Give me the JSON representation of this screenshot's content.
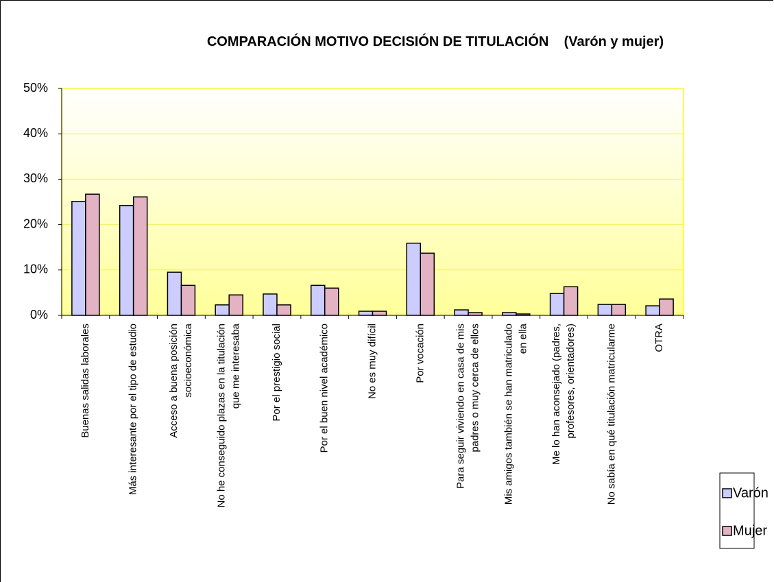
{
  "chart_data": {
    "type": "bar",
    "title": "COMPARACIÓN MOTIVO DECISIÓN DE TITULACIÓN    (Varón y mujer)",
    "categories": [
      "Buenas salidas laborales",
      "Más interesante por el tipo de estudio",
      "Acceso a buena posición\nsocioeconómica",
      "No he conseguido plazas en la titulación\nque me interesaba",
      "Por el prestigio social",
      "Por el buen nivel académico",
      "No es muy difícil",
      "Por vocación",
      "Para seguir viviendo en casa de mis\npadres o muy cerca de ellos",
      "Mis amigos también se han matriculado\nen ella",
      "Me lo han aconsejado (padres,\nprofesores, orientadores)",
      "No sabía en qué titulación matricularme",
      "OTRA"
    ],
    "series": [
      {
        "name": "Varón",
        "color": "#ccccff",
        "values": [
          25.1,
          24.2,
          9.5,
          2.3,
          4.7,
          6.6,
          0.9,
          15.9,
          1.2,
          0.6,
          4.8,
          2.4,
          2.1
        ]
      },
      {
        "name": "Mujer",
        "color": "#e3b3c3",
        "values": [
          26.7,
          26.1,
          6.6,
          4.5,
          2.3,
          6.0,
          0.9,
          13.7,
          0.6,
          0.3,
          6.3,
          2.4,
          3.6
        ]
      }
    ],
    "ylim": [
      0,
      50
    ],
    "yticks": [
      {
        "value": 0,
        "label": "0%"
      },
      {
        "value": 10,
        "label": "10%"
      },
      {
        "value": 20,
        "label": "20%"
      },
      {
        "value": 30,
        "label": "30%"
      },
      {
        "value": 40,
        "label": "40%"
      },
      {
        "value": 50,
        "label": "50%"
      }
    ],
    "grid": true,
    "legend": "right"
  }
}
